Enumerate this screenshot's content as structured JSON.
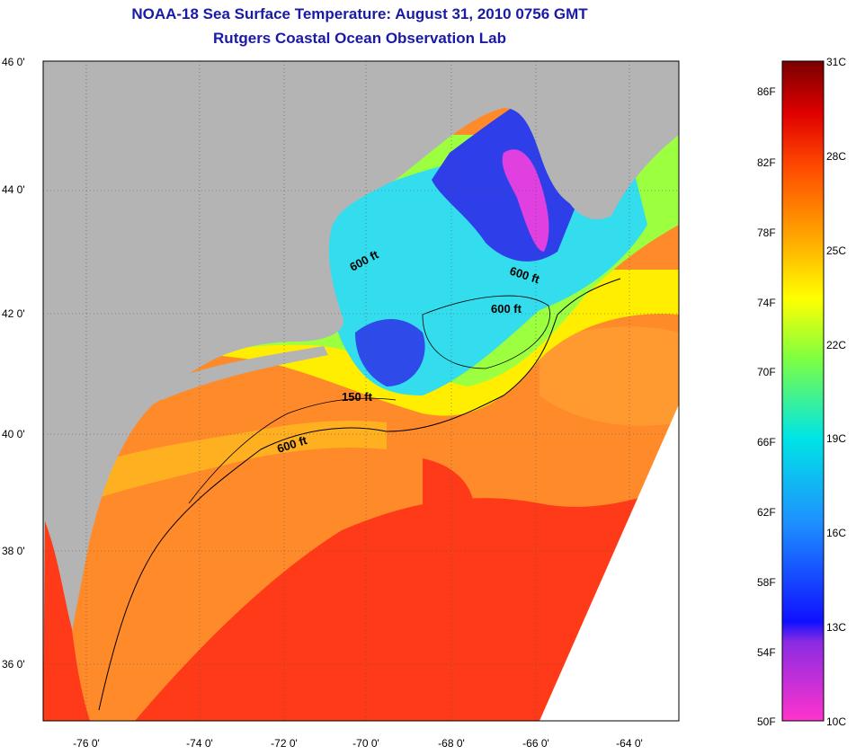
{
  "title": {
    "line1": "NOAA-18 Sea Surface Temperature:  August 31, 2010 0756 GMT",
    "line2": "Rutgers Coastal Ocean Observation Lab"
  },
  "map": {
    "lat_labels": [
      "46 0'",
      "44 0'",
      "42 0'",
      "40 0'",
      "38 0'",
      "36 0'"
    ],
    "lon_labels": [
      "-76 0'",
      "-74 0'",
      "-72 0'",
      "-70 0'",
      "-68 0'",
      "-66 0'",
      "-64 0'"
    ],
    "lat_range": [
      35,
      46
    ],
    "lon_range": [
      -77,
      -63
    ],
    "contour_labels": [
      "600 ft",
      "600 ft",
      "600 ft",
      "150 ft",
      "600 ft"
    ],
    "land_color": "#b4b4b4"
  },
  "colorbar": {
    "fahrenheit": [
      "86F",
      "82F",
      "78F",
      "74F",
      "70F",
      "66F",
      "62F",
      "58F",
      "54F",
      "50F"
    ],
    "celsius": [
      "31C",
      "28C",
      "25C",
      "22C",
      "19C",
      "16C",
      "13C",
      "10C"
    ],
    "range_c": [
      10,
      31
    ]
  }
}
